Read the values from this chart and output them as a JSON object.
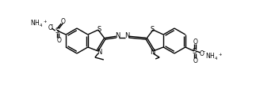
{
  "bg_color": "#ffffff",
  "line_color": "#000000",
  "lw": 1.0,
  "fig_width": 3.23,
  "fig_height": 1.12,
  "dpi": 100,
  "xlim": [
    0,
    323
  ],
  "ylim": [
    0,
    112
  ]
}
